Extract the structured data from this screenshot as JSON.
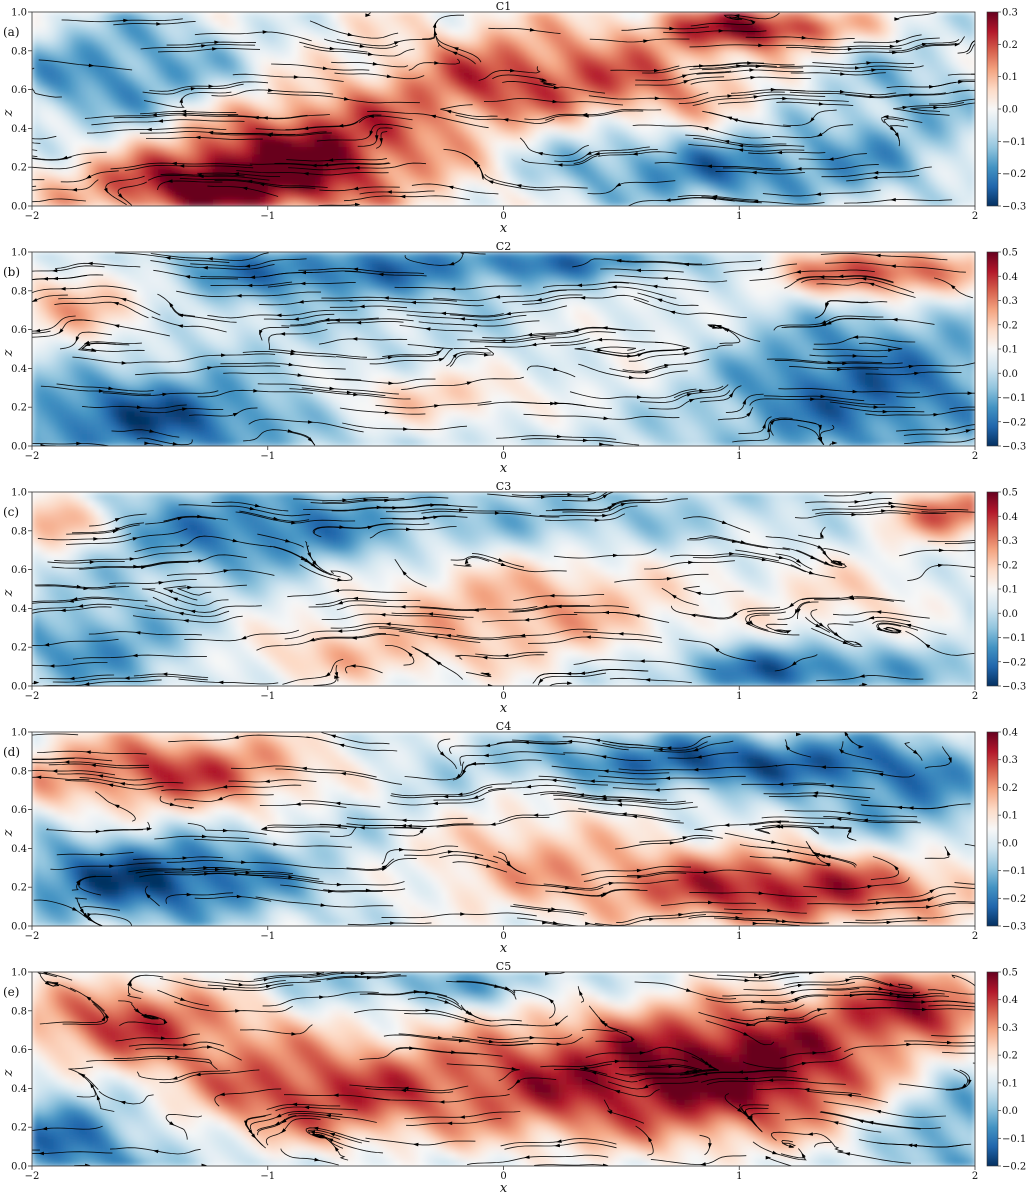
{
  "chart_data": [
    {
      "type": "heatmap",
      "panel_label": "(a)",
      "title": "C1",
      "xlabel": "x",
      "ylabel": "z",
      "xlim": [
        -2,
        2
      ],
      "ylim": [
        0,
        1
      ],
      "xticks": [
        -2,
        -1,
        0,
        1,
        2
      ],
      "yticks": [
        0.0,
        0.2,
        0.4,
        0.6,
        0.8,
        1.0
      ],
      "colorbar": {
        "range": [
          -0.3,
          0.3
        ],
        "ticks": [
          -0.3,
          -0.2,
          -0.1,
          0.0,
          0.1,
          0.2,
          0.3
        ],
        "colormap": "RdBu_r"
      },
      "blobs": [
        {
          "x": -0.9,
          "z": 0.3,
          "v": 0.28,
          "sx": 0.45,
          "sz": 0.2
        },
        {
          "x": -1.3,
          "z": 0.1,
          "v": 0.22,
          "sx": 0.4,
          "sz": 0.12
        },
        {
          "x": 0.1,
          "z": 0.65,
          "v": 0.22,
          "sx": 0.4,
          "sz": 0.18
        },
        {
          "x": 1.1,
          "z": 0.92,
          "v": 0.28,
          "sx": 0.3,
          "sz": 0.08
        },
        {
          "x": 0.7,
          "z": 0.55,
          "v": 0.1,
          "sx": 0.25,
          "sz": 0.2
        },
        {
          "x": -1.6,
          "z": 0.65,
          "v": -0.2,
          "sx": 0.4,
          "sz": 0.25
        },
        {
          "x": 1.0,
          "z": 0.2,
          "v": -0.2,
          "sx": 0.45,
          "sz": 0.15
        },
        {
          "x": 1.7,
          "z": 0.55,
          "v": -0.12,
          "sx": 0.3,
          "sz": 0.3
        },
        {
          "x": 0.4,
          "z": 0.3,
          "v": -0.1,
          "sx": 0.3,
          "sz": 0.2
        }
      ]
    },
    {
      "type": "heatmap",
      "panel_label": "(b)",
      "title": "C2",
      "xlabel": "x",
      "ylabel": "z",
      "xlim": [
        -2,
        2
      ],
      "ylim": [
        0,
        1
      ],
      "xticks": [
        -2,
        -1,
        0,
        1,
        2
      ],
      "yticks": [
        0.0,
        0.2,
        0.4,
        0.6,
        0.8,
        1.0
      ],
      "colorbar": {
        "range": [
          -0.3,
          0.5
        ],
        "ticks": [
          -0.3,
          -0.2,
          -0.1,
          0.0,
          0.1,
          0.2,
          0.3,
          0.4,
          0.5
        ],
        "colormap": "RdBu_r"
      },
      "blobs": [
        {
          "x": 1.6,
          "z": 0.9,
          "v": 0.4,
          "sx": 0.35,
          "sz": 0.1
        },
        {
          "x": -1.8,
          "z": 0.75,
          "v": 0.25,
          "sx": 0.25,
          "sz": 0.15
        },
        {
          "x": -0.3,
          "z": 0.25,
          "v": 0.2,
          "sx": 0.35,
          "sz": 0.12
        },
        {
          "x": 0.6,
          "z": 0.55,
          "v": 0.1,
          "sx": 0.3,
          "sz": 0.25
        },
        {
          "x": -1.5,
          "z": 0.15,
          "v": -0.25,
          "sx": 0.45,
          "sz": 0.15
        },
        {
          "x": 1.5,
          "z": 0.3,
          "v": -0.22,
          "sx": 0.45,
          "sz": 0.25
        },
        {
          "x": -0.8,
          "z": 0.9,
          "v": -0.2,
          "sx": 0.5,
          "sz": 0.1
        },
        {
          "x": 0.3,
          "z": 0.95,
          "v": -0.18,
          "sx": 0.4,
          "sz": 0.07
        }
      ]
    },
    {
      "type": "heatmap",
      "panel_label": "(c)",
      "title": "C3",
      "xlabel": "x",
      "ylabel": "z",
      "xlim": [
        -2,
        2
      ],
      "ylim": [
        0,
        1
      ],
      "xticks": [
        -2,
        -1,
        0,
        1,
        2
      ],
      "yticks": [
        0.0,
        0.2,
        0.4,
        0.6,
        0.8,
        1.0
      ],
      "colorbar": {
        "range": [
          -0.3,
          0.5
        ],
        "ticks": [
          -0.3,
          -0.2,
          -0.1,
          0.0,
          0.1,
          0.2,
          0.3,
          0.4,
          0.5
        ],
        "colormap": "RdBu_r"
      },
      "blobs": [
        {
          "x": 0.1,
          "z": 0.4,
          "v": 0.25,
          "sx": 0.6,
          "sz": 0.25
        },
        {
          "x": -1.9,
          "z": 0.85,
          "v": 0.3,
          "sx": 0.15,
          "sz": 0.12
        },
        {
          "x": 1.9,
          "z": 0.9,
          "v": 0.35,
          "sx": 0.2,
          "sz": 0.1
        },
        {
          "x": -0.8,
          "z": 0.15,
          "v": 0.15,
          "sx": 0.4,
          "sz": 0.12
        },
        {
          "x": 1.5,
          "z": 0.45,
          "v": 0.15,
          "sx": 0.3,
          "sz": 0.2
        },
        {
          "x": -1.0,
          "z": 0.8,
          "v": -0.2,
          "sx": 0.5,
          "sz": 0.15
        },
        {
          "x": 1.2,
          "z": 0.1,
          "v": -0.25,
          "sx": 0.4,
          "sz": 0.1
        },
        {
          "x": -1.7,
          "z": 0.2,
          "v": -0.15,
          "sx": 0.3,
          "sz": 0.15
        },
        {
          "x": 0.3,
          "z": 0.85,
          "v": -0.1,
          "sx": 0.4,
          "sz": 0.12
        }
      ]
    },
    {
      "type": "heatmap",
      "panel_label": "(d)",
      "title": "C4",
      "xlabel": "x",
      "ylabel": "z",
      "xlim": [
        -2,
        2
      ],
      "ylim": [
        0,
        1
      ],
      "xticks": [
        -2,
        -1,
        0,
        1,
        2
      ],
      "yticks": [
        0.0,
        0.2,
        0.4,
        0.6,
        0.8,
        1.0
      ],
      "colorbar": {
        "range": [
          -0.3,
          0.4
        ],
        "ticks": [
          -0.3,
          -0.2,
          -0.1,
          0.0,
          0.1,
          0.2,
          0.3,
          0.4
        ],
        "colormap": "RdBu_r"
      },
      "blobs": [
        {
          "x": -1.4,
          "z": 0.8,
          "v": 0.3,
          "sx": 0.5,
          "sz": 0.15
        },
        {
          "x": 1.2,
          "z": 0.2,
          "v": 0.35,
          "sx": 0.6,
          "sz": 0.15
        },
        {
          "x": 0.0,
          "z": 0.4,
          "v": 0.15,
          "sx": 0.4,
          "sz": 0.2
        },
        {
          "x": -1.5,
          "z": 0.25,
          "v": -0.28,
          "sx": 0.45,
          "sz": 0.15
        },
        {
          "x": 0.9,
          "z": 0.85,
          "v": -0.25,
          "sx": 0.6,
          "sz": 0.1
        },
        {
          "x": 1.7,
          "z": 0.65,
          "v": -0.15,
          "sx": 0.3,
          "sz": 0.2
        },
        {
          "x": -0.5,
          "z": 0.6,
          "v": -0.08,
          "sx": 0.3,
          "sz": 0.2
        }
      ]
    },
    {
      "type": "heatmap",
      "panel_label": "(e)",
      "title": "C5",
      "xlabel": "x",
      "ylabel": "z",
      "xlim": [
        -2,
        2
      ],
      "ylim": [
        0,
        1
      ],
      "xticks": [
        -2,
        -1,
        0,
        1,
        2
      ],
      "yticks": [
        0.0,
        0.2,
        0.4,
        0.6,
        0.8,
        1.0
      ],
      "colorbar": {
        "range": [
          -0.2,
          0.5
        ],
        "ticks": [
          -0.2,
          -0.1,
          0.0,
          0.1,
          0.2,
          0.3,
          0.4,
          0.5
        ],
        "colormap": "RdBu_r"
      },
      "blobs": [
        {
          "x": 0.3,
          "z": 0.45,
          "v": 0.4,
          "sx": 0.7,
          "sz": 0.3
        },
        {
          "x": -1.6,
          "z": 0.75,
          "v": 0.38,
          "sx": 0.45,
          "sz": 0.2
        },
        {
          "x": 1.2,
          "z": 0.55,
          "v": 0.32,
          "sx": 0.45,
          "sz": 0.3
        },
        {
          "x": 1.8,
          "z": 0.85,
          "v": 0.35,
          "sx": 0.25,
          "sz": 0.15
        },
        {
          "x": -0.9,
          "z": 0.35,
          "v": 0.3,
          "sx": 0.4,
          "sz": 0.2
        },
        {
          "x": -1.8,
          "z": 0.15,
          "v": -0.12,
          "sx": 0.2,
          "sz": 0.15
        },
        {
          "x": -0.2,
          "z": 0.92,
          "v": -0.1,
          "sx": 0.4,
          "sz": 0.07
        },
        {
          "x": 1.85,
          "z": 0.25,
          "v": -0.12,
          "sx": 0.2,
          "sz": 0.15
        }
      ]
    }
  ]
}
